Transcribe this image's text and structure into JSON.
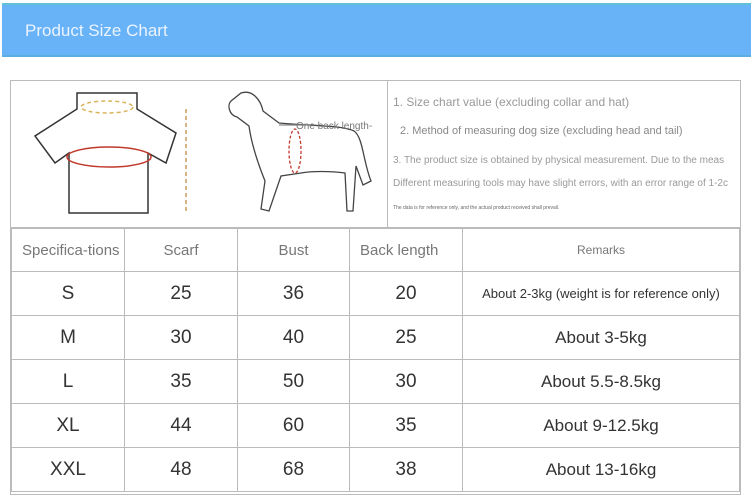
{
  "header": {
    "title": "Product Size Chart"
  },
  "diagram": {
    "label": "One back length-"
  },
  "notes": [
    "1. Size chart value (excluding collar and hat)",
    "2. Method of measuring dog size (excluding head and tail)",
    "3. The product size is obtained by physical measurement. Due to the meas",
    "Different measuring tools may have slight errors, with an error range of 1-2c",
    "The data is for reference only, and the actual product received shall prevail."
  ],
  "table": {
    "headers": [
      "Specifica-tions",
      "Scarf",
      "Bust",
      "Back length",
      "Remarks"
    ],
    "rows": [
      [
        "S",
        "25",
        "36",
        "20",
        "About 2-3kg (weight is for reference only)"
      ],
      [
        "M",
        "30",
        "40",
        "25",
        "About 3-5kg"
      ],
      [
        "L",
        "35",
        "50",
        "30",
        "About 5.5-8.5kg"
      ],
      [
        "XL",
        "44",
        "60",
        "35",
        "About 9-12.5kg"
      ],
      [
        "XXL",
        "48",
        "68",
        "38",
        "About 13-16kg"
      ]
    ]
  }
}
